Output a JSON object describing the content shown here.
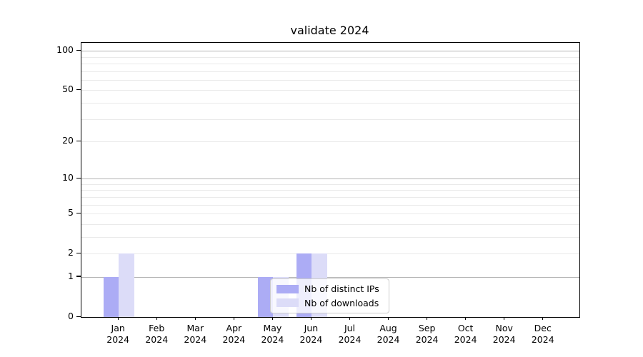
{
  "chart_data": {
    "type": "bar",
    "title": "validate 2024",
    "categories": [
      "Jan",
      "Feb",
      "Mar",
      "Apr",
      "May",
      "Jun",
      "Jul",
      "Aug",
      "Sep",
      "Oct",
      "Nov",
      "Dec"
    ],
    "year_label": "2024",
    "series": [
      {
        "name": "Nb of distinct IPs",
        "color": "#acacf5",
        "values": [
          1,
          0,
          0,
          0,
          1,
          2,
          0,
          0,
          0,
          0,
          0,
          0
        ]
      },
      {
        "name": "Nb of downloads",
        "color": "#dcdcf8",
        "values": [
          2,
          0,
          0,
          0,
          1,
          2,
          0,
          0,
          0,
          0,
          0,
          0
        ]
      }
    ],
    "yscale": "log(1+x)",
    "y_ticks": [
      0,
      1,
      2,
      5,
      10,
      20,
      50,
      100
    ],
    "ylim": [
      0,
      115
    ],
    "xlabel": "",
    "ylabel": "",
    "grid": "horizontal",
    "legend_position": "lower-right-inside"
  }
}
